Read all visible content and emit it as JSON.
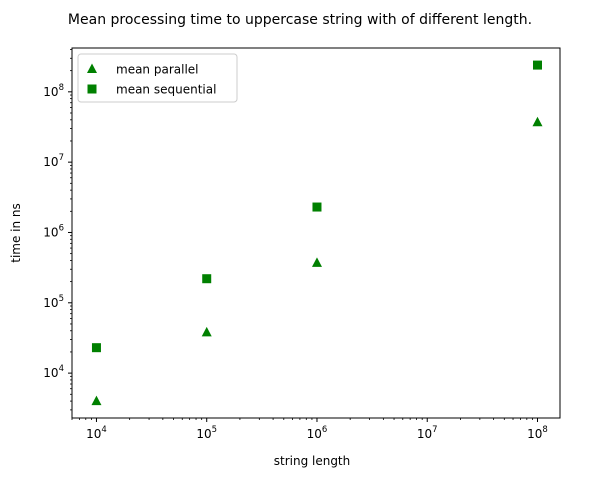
{
  "chart_data": {
    "type": "scatter",
    "title": "Mean processing time to uppercase string with of different length.",
    "xlabel": "string length",
    "ylabel": "time in ns",
    "xscale": "log",
    "yscale": "log",
    "xlim": [
      6000,
      160000000
    ],
    "ylim": [
      2300,
      420000000
    ],
    "grid": false,
    "legend_position": "top-left",
    "x_ticks": [
      {
        "value": 10000,
        "base": "10",
        "exp": "4"
      },
      {
        "value": 100000,
        "base": "10",
        "exp": "5"
      },
      {
        "value": 1000000,
        "base": "10",
        "exp": "6"
      },
      {
        "value": 10000000,
        "base": "10",
        "exp": "7"
      },
      {
        "value": 100000000,
        "base": "10",
        "exp": "8"
      }
    ],
    "y_ticks": [
      {
        "value": 10000,
        "base": "10",
        "exp": "4"
      },
      {
        "value": 100000,
        "base": "10",
        "exp": "5"
      },
      {
        "value": 1000000,
        "base": "10",
        "exp": "6"
      },
      {
        "value": 10000000,
        "base": "10",
        "exp": "7"
      },
      {
        "value": 100000000,
        "base": "10",
        "exp": "8"
      }
    ],
    "series": [
      {
        "name": "mean parallel",
        "marker": "triangle",
        "color": "#008000",
        "x": [
          10000,
          100000,
          1000000,
          100000000
        ],
        "y": [
          4000,
          38000,
          370000,
          37000000
        ]
      },
      {
        "name": "mean sequential",
        "marker": "square",
        "color": "#008000",
        "x": [
          10000,
          100000,
          1000000,
          100000000
        ],
        "y": [
          23000,
          220000,
          2300000,
          240000000
        ]
      }
    ]
  }
}
